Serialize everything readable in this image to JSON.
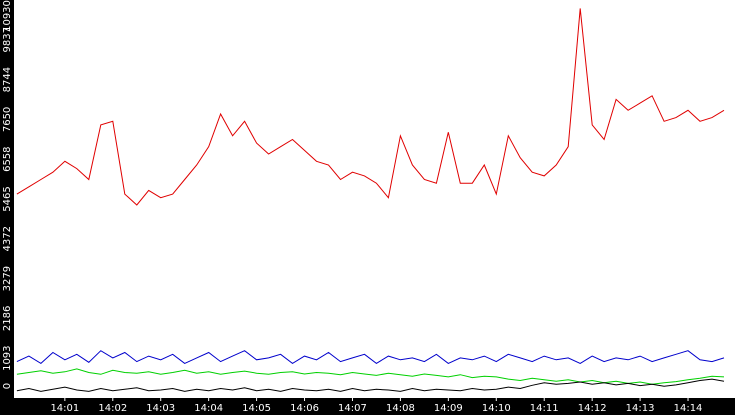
{
  "chart_data": {
    "type": "line",
    "x": [
      0,
      0.25,
      0.5,
      0.75,
      1,
      1.25,
      1.5,
      1.75,
      2,
      2.25,
      2.5,
      2.75,
      3,
      3.25,
      3.5,
      3.75,
      4,
      4.25,
      4.5,
      4.75,
      5,
      5.25,
      5.5,
      5.75,
      6,
      6.25,
      6.5,
      6.75,
      7,
      7.25,
      7.5,
      7.75,
      8,
      8.25,
      8.5,
      8.75,
      9,
      9.25,
      9.5,
      9.75,
      10,
      10.25,
      10.5,
      10.75,
      11,
      11.25,
      11.5,
      11.75,
      12,
      12.25,
      12.5,
      12.75,
      13,
      13.25,
      13.5,
      13.75,
      14,
      14.25,
      14.5,
      14.75
    ],
    "xlim": [
      -0.04,
      14.98
    ],
    "xticks": [
      {
        "value": 1,
        "label": "14:01"
      },
      {
        "value": 2,
        "label": "14:02"
      },
      {
        "value": 3,
        "label": "14:03"
      },
      {
        "value": 4,
        "label": "14:04"
      },
      {
        "value": 5,
        "label": "14:05"
      },
      {
        "value": 6,
        "label": "14:06"
      },
      {
        "value": 7,
        "label": "14:07"
      },
      {
        "value": 8,
        "label": "14:08"
      },
      {
        "value": 9,
        "label": "14:09"
      },
      {
        "value": 10,
        "label": "14:10"
      },
      {
        "value": 11,
        "label": "14:11"
      },
      {
        "value": 12,
        "label": "14:12"
      },
      {
        "value": 13,
        "label": "14:13"
      },
      {
        "value": 14,
        "label": "14:14"
      }
    ],
    "ylim": [
      0,
      10930
    ],
    "yticks": [
      0,
      1093,
      2186,
      3279,
      4372,
      5465,
      6558,
      7650,
      8744,
      9837,
      10930
    ],
    "series": [
      {
        "color": "#e00000",
        "values": [
          5600,
          5800,
          6000,
          6200,
          6500,
          6300,
          6000,
          7500,
          7600,
          5600,
          5300,
          5700,
          5500,
          5600,
          6000,
          6400,
          6900,
          7800,
          7200,
          7600,
          7000,
          6700,
          6900,
          7100,
          6800,
          6500,
          6400,
          6000,
          6200,
          6100,
          5900,
          5500,
          7200,
          6400,
          6000,
          5900,
          7300,
          5900,
          5900,
          6400,
          5600,
          7200,
          6600,
          6200,
          6100,
          6400,
          6900,
          10700,
          7500,
          7100,
          8200,
          7900,
          8100,
          8300,
          7600,
          7700,
          7900,
          7600,
          7700,
          7900
        ]
      },
      {
        "color": "#0000cc",
        "values": [
          1000,
          1150,
          950,
          1250,
          1050,
          1200,
          980,
          1300,
          1100,
          1250,
          1000,
          1150,
          1050,
          1200,
          950,
          1100,
          1250,
          1000,
          1150,
          1300,
          1050,
          1100,
          1200,
          950,
          1150,
          1050,
          1250,
          1000,
          1100,
          1200,
          950,
          1150,
          1050,
          1100,
          1000,
          1200,
          950,
          1100,
          1050,
          1150,
          1000,
          1200,
          1100,
          1000,
          1150,
          1050,
          1100,
          950,
          1150,
          1000,
          1100,
          1050,
          1150,
          1000,
          1100,
          1200,
          1300,
          1050,
          1000,
          1100
        ]
      },
      {
        "color": "#00d000",
        "values": [
          650,
          700,
          750,
          680,
          720,
          800,
          700,
          650,
          760,
          700,
          680,
          720,
          650,
          700,
          760,
          680,
          720,
          650,
          700,
          740,
          680,
          650,
          700,
          720,
          660,
          700,
          680,
          640,
          700,
          660,
          620,
          680,
          640,
          600,
          660,
          620,
          580,
          640,
          560,
          600,
          580,
          520,
          480,
          540,
          500,
          460,
          500,
          440,
          480,
          420,
          460,
          400,
          440,
          380,
          420,
          450,
          500,
          540,
          600,
          580
        ]
      },
      {
        "color": "#000000",
        "values": [
          200,
          260,
          180,
          240,
          300,
          220,
          180,
          260,
          200,
          240,
          280,
          200,
          220,
          260,
          180,
          240,
          200,
          260,
          220,
          280,
          200,
          240,
          180,
          260,
          220,
          200,
          240,
          180,
          260,
          200,
          240,
          220,
          180,
          260,
          200,
          240,
          220,
          200,
          260,
          220,
          240,
          300,
          260,
          350,
          420,
          380,
          400,
          440,
          380,
          420,
          360,
          400,
          340,
          380,
          320,
          360,
          420,
          480,
          520,
          460
        ]
      }
    ]
  }
}
